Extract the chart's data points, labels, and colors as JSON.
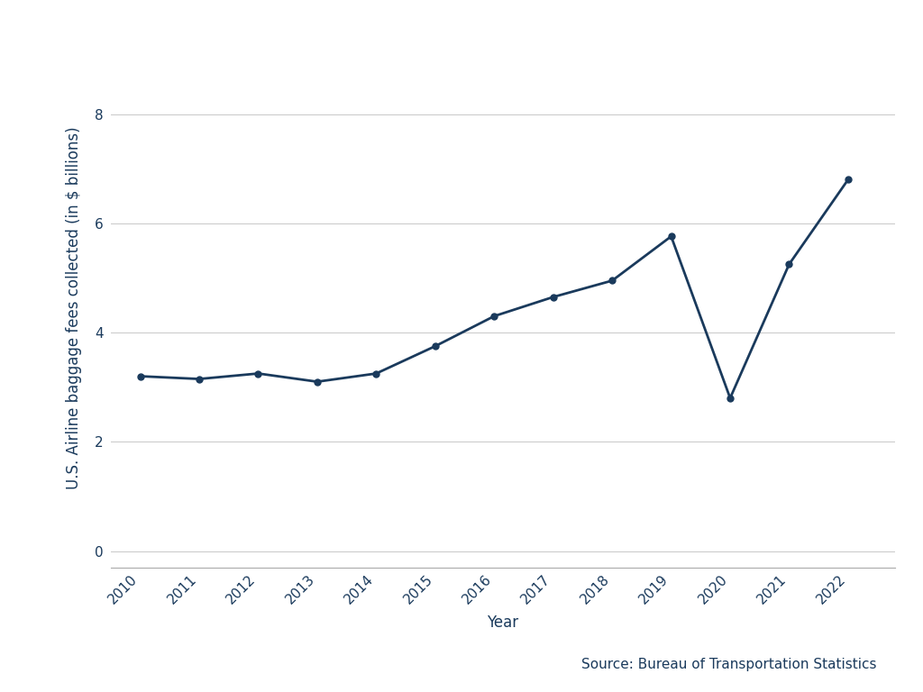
{
  "years": [
    2010,
    2011,
    2012,
    2013,
    2014,
    2015,
    2016,
    2017,
    2018,
    2019,
    2020,
    2021,
    2022
  ],
  "values": [
    3.2,
    3.15,
    3.25,
    3.1,
    3.25,
    3.75,
    4.3,
    4.65,
    4.95,
    5.76,
    2.8,
    5.25,
    6.8
  ],
  "line_color": "#1a3a5c",
  "marker": "o",
  "marker_size": 5,
  "linewidth": 2.0,
  "xlabel": "Year",
  "ylabel": "U.S. Airline baggage fees collected (in $ billions)",
  "ylim": [
    -0.3,
    9.2
  ],
  "yticks": [
    0,
    2,
    4,
    6,
    8
  ],
  "xlim": [
    2009.5,
    2022.8
  ],
  "source_text": "Source: Bureau of Transportation Statistics",
  "background_color": "#ffffff",
  "grid_color": "#cccccc",
  "axis_label_color": "#1a3a5c",
  "tick_label_color": "#1a3a5c",
  "tick_color": "#aaaaaa",
  "label_fontsize": 12,
  "tick_fontsize": 11,
  "source_fontsize": 11
}
